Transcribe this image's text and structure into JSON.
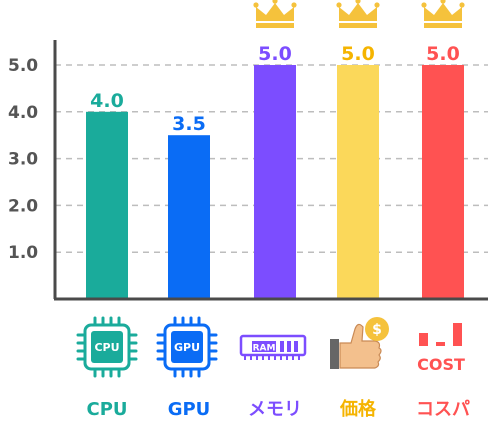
{
  "chart_data": {
    "type": "bar",
    "categories": [
      "CPU",
      "GPU",
      "メモリ",
      "価格",
      "コスパ"
    ],
    "values": [
      4.0,
      3.5,
      5.0,
      5.0,
      5.0
    ],
    "value_labels": [
      "4.0",
      "3.5",
      "5.0",
      "5.0",
      "5.0"
    ],
    "yticks": [
      "1.0",
      "2.0",
      "3.0",
      "4.0",
      "5.0"
    ],
    "ylim": [
      0,
      5.0
    ],
    "grid": true,
    "colors": [
      "#1aab9b",
      "#0a6cf5",
      "#7c4dff",
      "#fbd85a",
      "#ff5252"
    ],
    "label_colors": [
      "#1aab9b",
      "#0a6cf5",
      "#7c4dff",
      "#f5b400",
      "#ff5252"
    ],
    "crown_color": "#f5c23c",
    "crowns": [
      false,
      false,
      true,
      true,
      true
    ],
    "icons": [
      "cpu-chip-icon",
      "gpu-chip-icon",
      "ram-module-icon",
      "thumbs-up-coin-icon",
      "cost-bars-icon"
    ],
    "icon_texts": {
      "cpu": "CPU",
      "gpu": "GPU",
      "ram": "RAM",
      "coin": "$",
      "cost": "COST"
    }
  }
}
